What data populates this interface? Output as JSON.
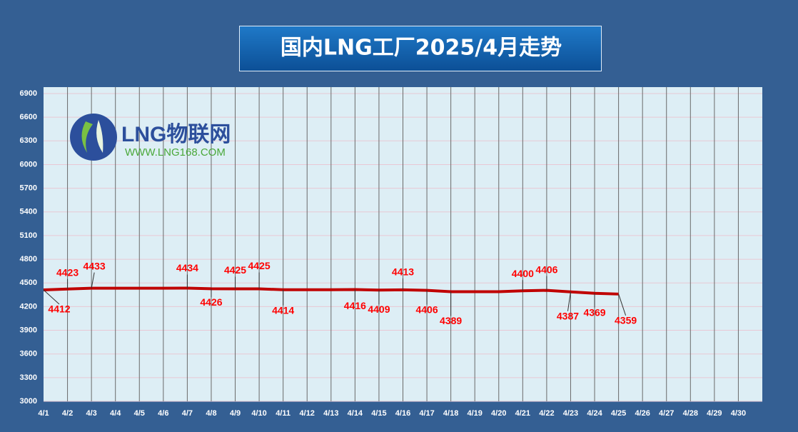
{
  "chart_data": {
    "type": "line",
    "title": "国内LNG工厂2025/4月走势",
    "logo": {
      "name": "LNG物联网",
      "url": "WWW.LNG168.COM"
    },
    "categories": [
      "4/1",
      "4/2",
      "4/3",
      "4/4",
      "4/5",
      "4/6",
      "4/7",
      "4/8",
      "4/9",
      "4/10",
      "4/11",
      "4/12",
      "4/13",
      "4/14",
      "4/15",
      "4/16",
      "4/17",
      "4/18",
      "4/19",
      "4/20",
      "4/21",
      "4/22",
      "4/23",
      "4/24",
      "4/25",
      "4/26",
      "4/27",
      "4/28",
      "4/29",
      "4/30"
    ],
    "series": [
      {
        "name": "LNG",
        "color": "#c00000",
        "values": [
          4412,
          4423,
          4433,
          4433,
          4433,
          4433,
          4434,
          4426,
          4425,
          4425,
          4414,
          4414,
          4414,
          4416,
          4409,
          4413,
          4406,
          4389,
          4389,
          4389,
          4400,
          4406,
          4387,
          4369,
          4359,
          null,
          null,
          null,
          null,
          null
        ],
        "value_labels": [
          "4412",
          "4423",
          "4433",
          null,
          null,
          null,
          "4434",
          "4426",
          "4425",
          "4425",
          "4414",
          null,
          null,
          "4416",
          "4409",
          "4413",
          "4406",
          "4389",
          null,
          null,
          "4400",
          "4406",
          "4387",
          "4369",
          "4359",
          null,
          null,
          null,
          null,
          null
        ]
      }
    ],
    "ylim": [
      3000,
      6900
    ],
    "yticks": [
      3000,
      3300,
      3600,
      3900,
      4200,
      4500,
      4800,
      5100,
      5400,
      5700,
      6000,
      6300,
      6600,
      6900
    ],
    "grid": true
  }
}
